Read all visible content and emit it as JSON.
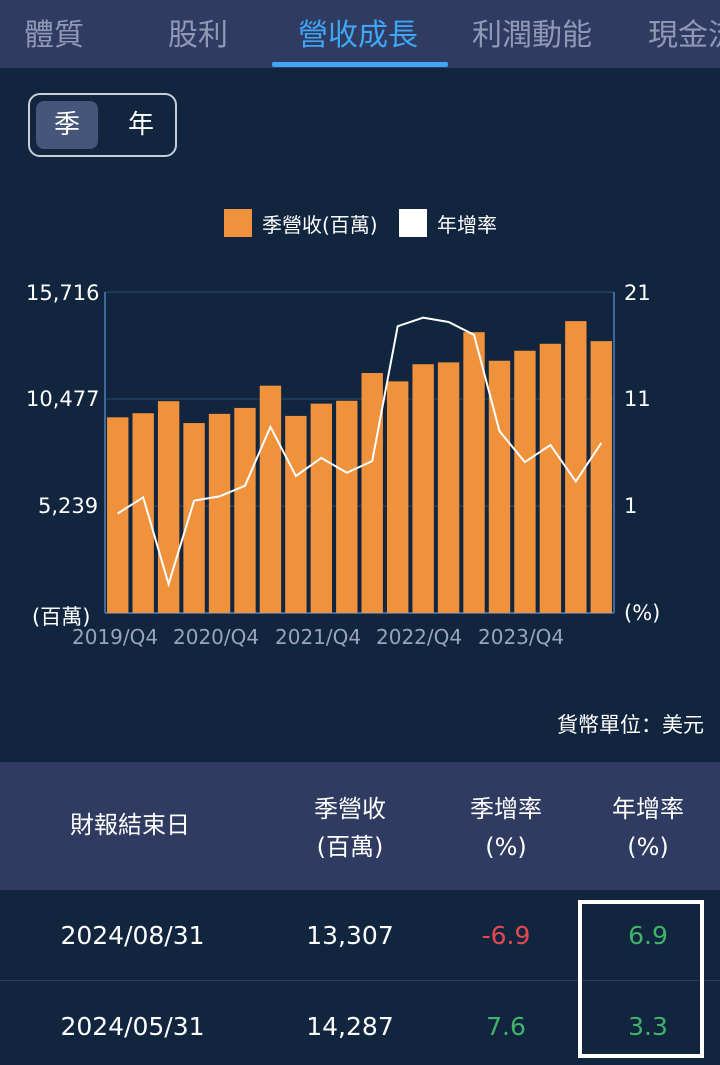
{
  "tabs": [
    "體質",
    "股利",
    "營收成長",
    "利潤動能",
    "現金流"
  ],
  "period_toggle": {
    "selected": "季",
    "other": "年"
  },
  "legend": {
    "revenue": "季營收(百萬)",
    "yoy": "年增率"
  },
  "colors": {
    "bar": "#f0923c",
    "line": "#ffffff",
    "accent": "#3fa6f5",
    "negative": "#e5484d",
    "positive": "#3fb36a"
  },
  "axis": {
    "left_ticks": [
      "15,716",
      "10,477",
      "5,239"
    ],
    "left_unit": "(百萬)",
    "right_ticks": [
      "21",
      "11",
      "1"
    ],
    "right_unit": "(%)",
    "x_ticks": [
      "2019/Q4",
      "2020/Q4",
      "2021/Q4",
      "2022/Q4",
      "2023/Q4"
    ]
  },
  "chart_data": {
    "type": "bar",
    "categories": [
      "2019/Q4",
      "2020/Q1",
      "2020/Q2",
      "2020/Q3",
      "2020/Q4",
      "2021/Q1",
      "2021/Q2",
      "2021/Q3",
      "2021/Q4",
      "2022/Q1",
      "2022/Q2",
      "2022/Q3",
      "2022/Q4",
      "2023/Q1",
      "2023/Q2",
      "2023/Q3",
      "2023/Q4",
      "2024/Q1",
      "2024/Q2",
      "2024/Q3"
    ],
    "series": [
      {
        "name": "季營收(百萬)",
        "type": "bar",
        "axis": "left",
        "values": [
          9580,
          9780,
          10370,
          9300,
          9750,
          10040,
          11130,
          9650,
          10250,
          10390,
          11750,
          11340,
          12180,
          12270,
          13750,
          12350,
          12840,
          13180,
          14290,
          13310
        ]
      },
      {
        "name": "年增率",
        "type": "line",
        "axis": "right",
        "values": [
          0.3,
          1.8,
          -6.3,
          1.5,
          1.9,
          2.9,
          8.4,
          3.8,
          5.5,
          4.1,
          5.2,
          17.8,
          18.6,
          18.2,
          17.0,
          8.0,
          5.1,
          6.7,
          3.3,
          6.9
        ]
      }
    ],
    "ylim_left": [
      0,
      15716
    ],
    "ylim_right": [
      -9,
      21
    ]
  },
  "currency_note": "貨幣單位：美元",
  "table": {
    "headers": [
      [
        "財報結束日"
      ],
      [
        "季營收",
        "(百萬)"
      ],
      [
        "季增率",
        "(%)"
      ],
      [
        "年增率",
        "(%)"
      ]
    ],
    "rows": [
      {
        "date": "2024/08/31",
        "revenue": "13,307",
        "qoq": "-6.9",
        "yoy": "6.9"
      },
      {
        "date": "2024/05/31",
        "revenue": "14,287",
        "qoq": "7.6",
        "yoy": "3.3"
      }
    ]
  }
}
